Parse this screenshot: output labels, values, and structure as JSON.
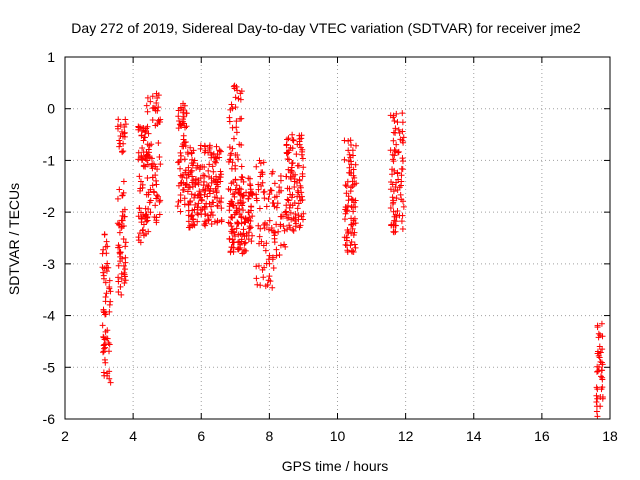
{
  "chart_data": {
    "type": "scatter",
    "title": "Day 272 of 2019, Sidereal Day-to-day VTEC variation (SDTVAR) for receiver jme2",
    "xlabel": "GPS time / hours",
    "ylabel": "SDTVAR / TECUs",
    "xlim": [
      2,
      18
    ],
    "ylim": [
      -6,
      1
    ],
    "xticks": [
      "2",
      "4",
      "6",
      "8",
      "10",
      "12",
      "14",
      "16",
      "18"
    ],
    "yticks": [
      "1",
      "0",
      "-1",
      "-2",
      "-3",
      "-4",
      "-5",
      "-6"
    ],
    "grid": true,
    "marker": "+",
    "color": "#ff0000",
    "series": [
      {
        "name": "SDTVAR",
        "clusters": [
          {
            "x": [
              3.1,
              3.35
            ],
            "y": [
              -5.4,
              -2.4
            ],
            "n": 60
          },
          {
            "x": [
              3.55,
              3.8
            ],
            "y": [
              -3.6,
              -1.4
            ],
            "n": 50
          },
          {
            "x": [
              3.55,
              3.8
            ],
            "y": [
              -0.9,
              -0.2
            ],
            "n": 20
          },
          {
            "x": [
              4.15,
              4.45
            ],
            "y": [
              -2.6,
              -0.3
            ],
            "n": 70
          },
          {
            "x": [
              4.4,
              4.8
            ],
            "y": [
              -2.2,
              0.3
            ],
            "n": 70
          },
          {
            "x": [
              5.3,
              5.6
            ],
            "y": [
              -2.0,
              0.1
            ],
            "n": 60
          },
          {
            "x": [
              5.6,
              6.6
            ],
            "y": [
              -2.3,
              -0.7
            ],
            "n": 180
          },
          {
            "x": [
              6.8,
              7.2
            ],
            "y": [
              -1.2,
              0.45
            ],
            "n": 40
          },
          {
            "x": [
              6.8,
              7.5
            ],
            "y": [
              -2.8,
              -1.3
            ],
            "n": 140
          },
          {
            "x": [
              7.6,
              8.1
            ],
            "y": [
              -3.5,
              -1.0
            ],
            "n": 60
          },
          {
            "x": [
              8.1,
              8.5
            ],
            "y": [
              -3.1,
              -1.2
            ],
            "n": 40
          },
          {
            "x": [
              8.5,
              9.0
            ],
            "y": [
              -2.4,
              -0.5
            ],
            "n": 100
          },
          {
            "x": [
              10.2,
              10.55
            ],
            "y": [
              -2.8,
              -0.6
            ],
            "n": 80
          },
          {
            "x": [
              11.55,
              11.95
            ],
            "y": [
              -2.4,
              0.0
            ],
            "n": 80
          },
          {
            "x": [
              17.6,
              17.8
            ],
            "y": [
              -5.95,
              -4.15
            ],
            "n": 40
          }
        ]
      }
    ]
  }
}
